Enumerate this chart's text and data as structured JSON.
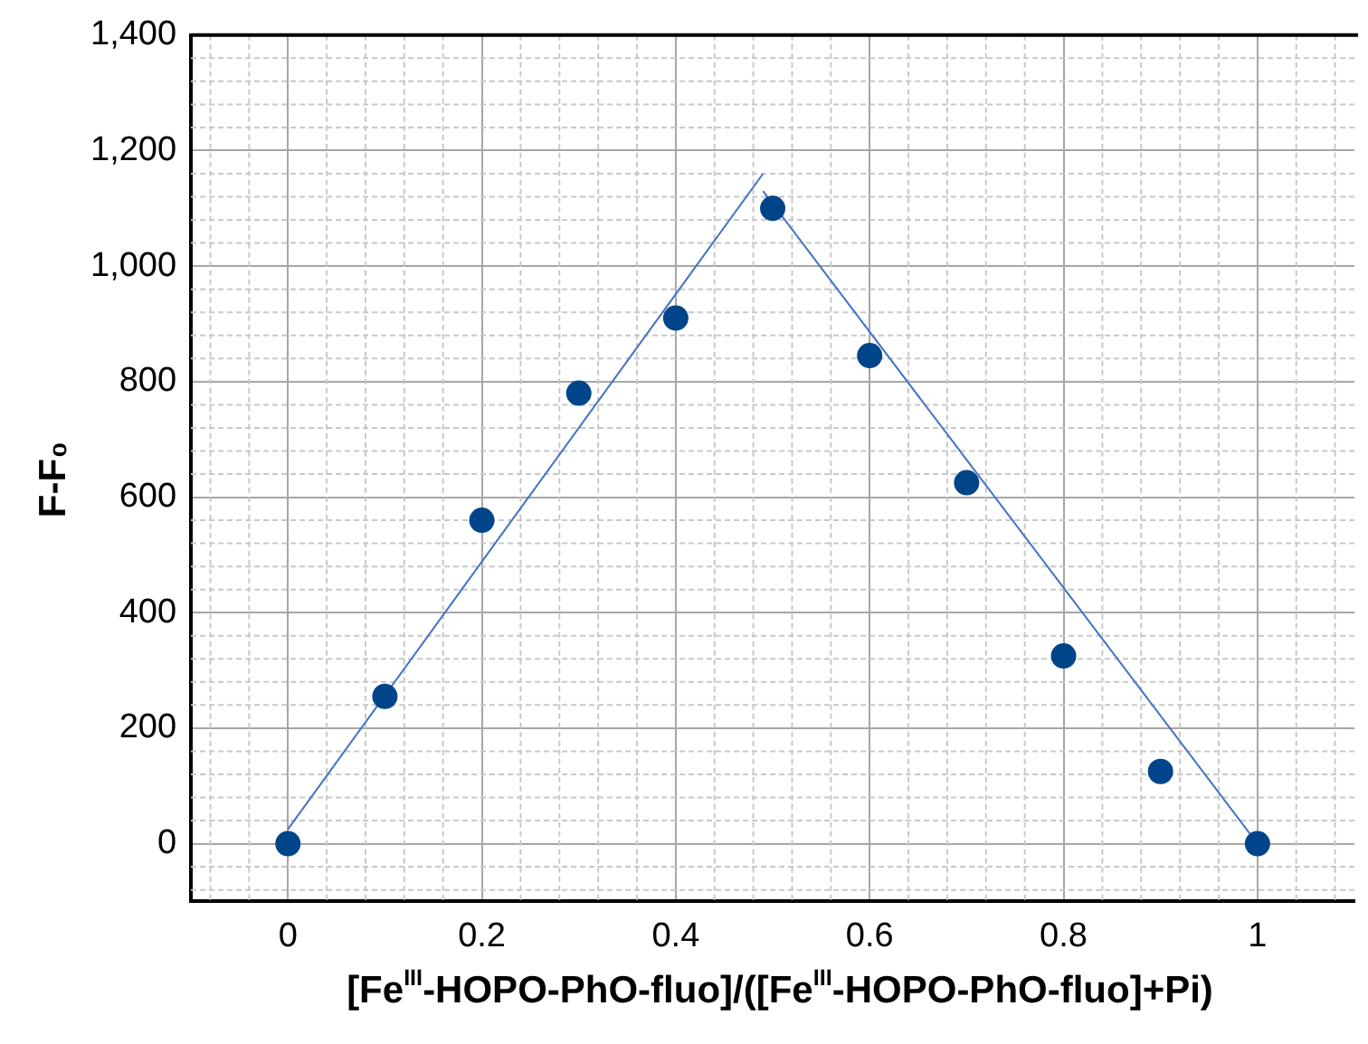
{
  "chart_data": {
    "type": "scatter",
    "xlabel": "[Fe$^{III}$-HOPO-PhO-fluo]/([Fe$^{III}$-HOPO-PhO-fluo]+Pi)",
    "ylabel": "F-F₀",
    "xlim": [
      -0.1,
      1.1
    ],
    "xticks": [
      0,
      0.2,
      0.4,
      0.6,
      0.8,
      1
    ],
    "ylim": [
      -100,
      1400
    ],
    "yticks": [
      0,
      200,
      400,
      600,
      800,
      {
        "value": 1000,
        "label": "1,000"
      },
      {
        "value": 1200,
        "label": "1,200"
      },
      {
        "value": 1400,
        "label": "1,400"
      }
    ],
    "grid": true,
    "legend": false,
    "marker": "circle",
    "series": [
      {
        "type": "scatter",
        "color": "#00458a",
        "x": [
          0,
          0.1,
          0.2,
          0.3,
          0.4,
          0.5,
          0.6,
          0.7,
          0.8,
          0.9,
          1
        ],
        "values": [
          0,
          255,
          560,
          780,
          910,
          1100,
          845,
          625,
          325,
          125,
          0
        ]
      },
      {
        "type": "line",
        "color": "#4472c4",
        "marker": "none",
        "x": [
          0,
          0.49
        ],
        "values": [
          25,
          1160
        ]
      },
      {
        "type": "line",
        "color": "#4472c4",
        "marker": "none",
        "x": [
          0.49,
          1
        ],
        "values": [
          1130,
          0
        ]
      }
    ]
  }
}
